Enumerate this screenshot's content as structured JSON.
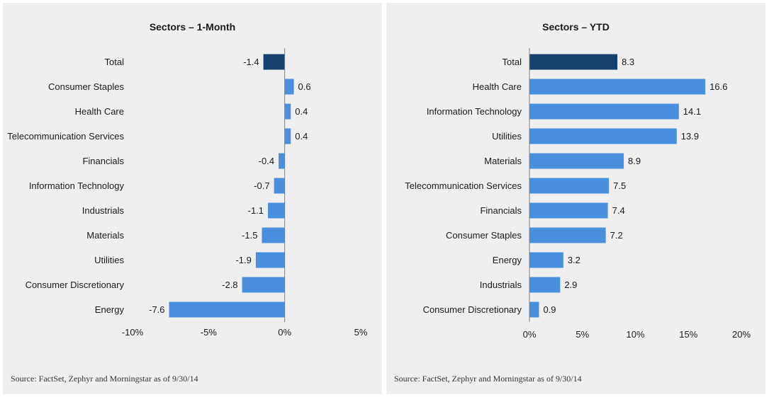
{
  "colors": {
    "total": "#17406d",
    "bar": "#4a8fde",
    "axis": "#7f7f7f",
    "background": "#efefef"
  },
  "chart_data": [
    {
      "type": "bar",
      "orientation": "horizontal",
      "title": "Sectors – 1-Month",
      "categories": [
        "Total",
        "Consumer Staples",
        "Health Care",
        "Telecommunication Services",
        "Financials",
        "Information Technology",
        "Industrials",
        "Materials",
        "Utilities",
        "Consumer Discretionary",
        "Energy"
      ],
      "values": [
        -1.4,
        0.6,
        0.4,
        0.4,
        -0.4,
        -0.7,
        -1.1,
        -1.5,
        -1.9,
        -2.8,
        -7.6
      ],
      "labels": [
        "-1.4",
        "0.6",
        "0.4",
        "0.4",
        "-0.4",
        "-0.7",
        "-1.1",
        "-1.5",
        "-1.9",
        "-2.8",
        "-7.6"
      ],
      "highlight_index": 0,
      "xlim": [
        -10,
        5
      ],
      "xticks": [
        -10,
        -5,
        0,
        5
      ],
      "xtick_labels": [
        "-10%",
        "-5%",
        "0%",
        "5%"
      ],
      "grid": false,
      "legend": "none",
      "source": "Source: FactSet, Zephyr and Morningstar as of 9/30/14"
    },
    {
      "type": "bar",
      "orientation": "horizontal",
      "title": "Sectors – YTD",
      "categories": [
        "Total",
        "Health Care",
        "Information Technology",
        "Utilities",
        "Materials",
        "Telecommunication Services",
        "Financials",
        "Consumer Staples",
        "Energy",
        "Industrials",
        "Consumer Discretionary"
      ],
      "values": [
        8.3,
        16.6,
        14.1,
        13.9,
        8.9,
        7.5,
        7.4,
        7.2,
        3.2,
        2.9,
        0.9
      ],
      "labels": [
        "8.3",
        "16.6",
        "14.1",
        "13.9",
        "8.9",
        "7.5",
        "7.4",
        "7.2",
        "3.2",
        "2.9",
        "0.9"
      ],
      "highlight_index": 0,
      "xlim": [
        0,
        20
      ],
      "xticks": [
        0,
        5,
        10,
        15,
        20
      ],
      "xtick_labels": [
        "0%",
        "5%",
        "10%",
        "15%",
        "20%"
      ],
      "grid": false,
      "legend": "none",
      "source": "Source: FactSet, Zephyr and Morningstar as of 9/30/14"
    }
  ]
}
